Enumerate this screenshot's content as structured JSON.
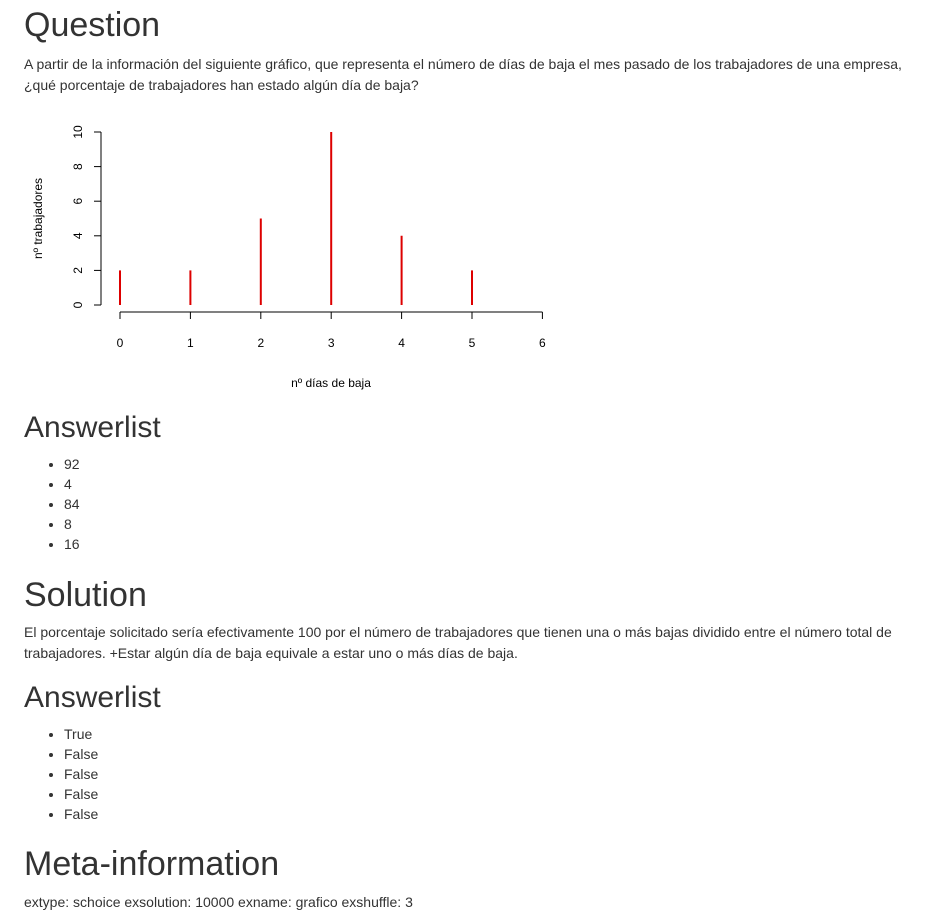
{
  "question": {
    "heading": "Question",
    "text_line1": "A partir de la información del siguiente gráfico, que representa el número de días de baja el mes pasado de los trabajadores de una empresa,",
    "text_line2": "¿qué porcentaje de trabajadores han estado algún día de baja?"
  },
  "chart_data": {
    "type": "bar",
    "style": "spike",
    "categories": [
      "0",
      "1",
      "2",
      "3",
      "4",
      "5"
    ],
    "values": [
      2,
      2,
      5,
      10,
      4,
      2
    ],
    "x": [
      0,
      1,
      2,
      3,
      4,
      5
    ],
    "xlabel": "nº días de baja",
    "ylabel": "nº trabajadores",
    "xlim": [
      0,
      6
    ],
    "ylim": [
      0,
      10
    ],
    "x_ticks": [
      "0",
      "1",
      "2",
      "3",
      "4",
      "5",
      "6"
    ],
    "y_ticks": [
      "0",
      "2",
      "4",
      "6",
      "8",
      "10"
    ],
    "color": "#dd0000",
    "grid": false
  },
  "answerlist1": {
    "heading": "Answerlist",
    "items": [
      "92",
      "4",
      "84",
      "8",
      "16"
    ]
  },
  "solution": {
    "heading": "Solution",
    "text_line1": "El porcentaje solicitado sería efectivamente 100 por el número de trabajadores que tienen una o más bajas dividido entre el número total de",
    "text_line2": "trabajadores. +Estar algún día de baja equivale a estar uno o más días de baja."
  },
  "answerlist2": {
    "heading": "Answerlist",
    "items": [
      "True",
      "False",
      "False",
      "False",
      "False"
    ]
  },
  "meta": {
    "heading": "Meta-information",
    "text": "extype: schoice exsolution: 10000 exname: grafico exshuffle: 3"
  }
}
